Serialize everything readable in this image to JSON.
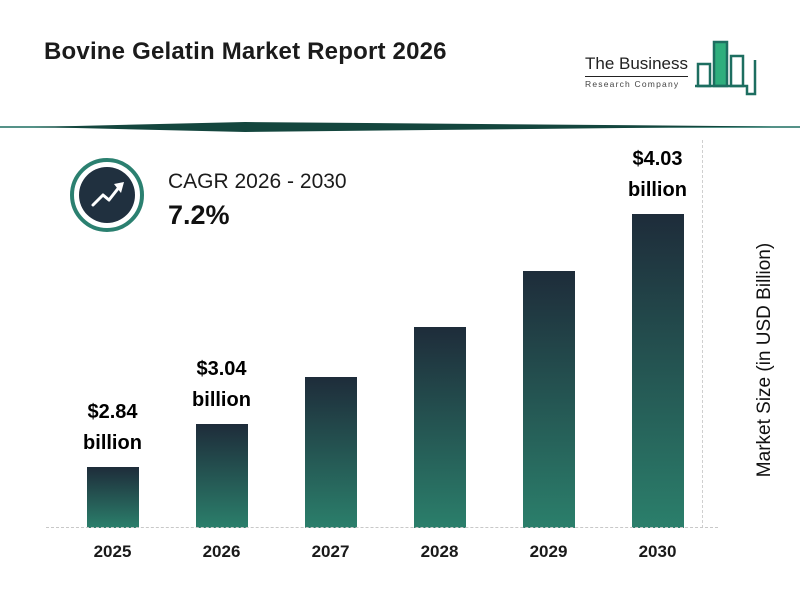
{
  "title": "Bovine Gelatin Market Report 2026",
  "logo": {
    "name_line": "The Business",
    "sub_line": "Research Company"
  },
  "cagr": {
    "label": "CAGR 2026 - 2030",
    "value": "7.2%"
  },
  "chart_data": {
    "type": "bar",
    "title": "Bovine Gelatin Market Report 2026",
    "categories": [
      "2025",
      "2026",
      "2027",
      "2028",
      "2029",
      "2030"
    ],
    "values": [
      2.84,
      3.04,
      3.26,
      3.5,
      3.76,
      4.03
    ],
    "value_labels": [
      {
        "amount": "$2.84",
        "unit": "billion"
      },
      {
        "amount": "$3.04",
        "unit": "billion"
      },
      null,
      null,
      null,
      {
        "amount": "$4.03",
        "unit": "billion"
      }
    ],
    "xlabel": "",
    "ylabel": "Market Size (in USD Billion)",
    "axis_baseline": 2.55,
    "grid": false,
    "legend": false
  },
  "colors": {
    "bar_top": "#1e2c3a",
    "bar_bottom": "#2b7f6b",
    "accent_teal": "#1d6e60",
    "divider_fill": "#14463e",
    "badge_ring": "#2b8070",
    "badge_fill": "#20303f",
    "text": "#111111"
  }
}
